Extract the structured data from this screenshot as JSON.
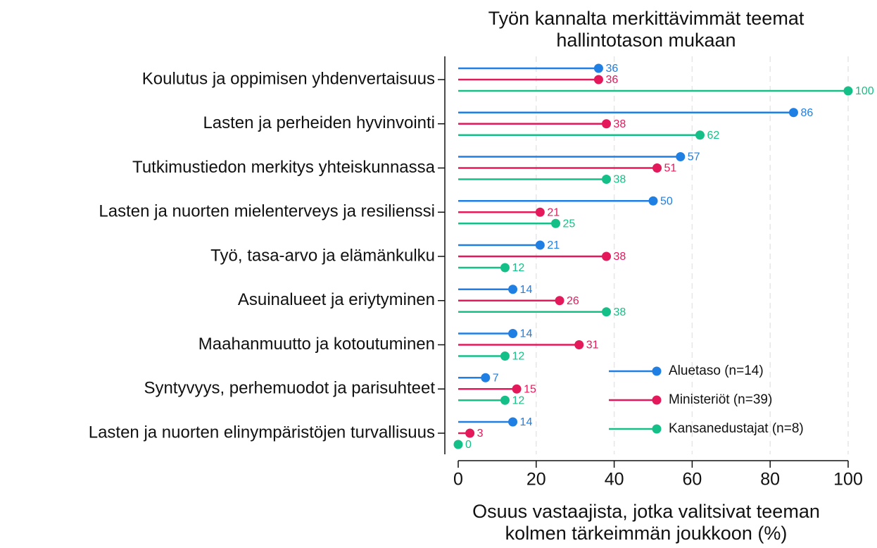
{
  "chart_data": {
    "type": "lollipop",
    "title": [
      "Työn kannalta merkittävimmät teemat",
      "hallintotason mukaan"
    ],
    "x_label": [
      "Osuus vastaajista, jotka valitsivat teeman",
      "kolmen tärkeimmän joukkoon (%)"
    ],
    "categories": [
      "Koulutus ja oppimisen yhdenvertaisuus",
      "Lasten ja perheiden hyvinvointi",
      "Tutkimustiedon merkitys yhteiskunnassa",
      "Lasten ja nuorten mielenterveys ja resilienssi",
      "Työ, tasa-arvo ja elämänkulku",
      "Asuinalueet ja eriytyminen",
      "Maahanmuutto ja kotoutuminen",
      "Syntyvyys, perhemuodot ja parisuhteet",
      "Lasten ja nuorten elinympäristöjen turvallisuus"
    ],
    "series": [
      {
        "name": "Aluetaso (n=14)",
        "color": "#1f7fe3",
        "values": [
          36,
          86,
          57,
          50,
          21,
          14,
          14,
          7,
          14
        ]
      },
      {
        "name": "Ministeriöt (n=39)",
        "color": "#e3195b",
        "values": [
          36,
          38,
          51,
          21,
          38,
          26,
          31,
          15,
          3
        ]
      },
      {
        "name": "Kansanedustajat (n=8)",
        "color": "#14c088",
        "values": [
          100,
          62,
          38,
          25,
          12,
          38,
          12,
          12,
          0
        ]
      }
    ],
    "xlim": [
      0,
      100
    ],
    "xticks": [
      0,
      20,
      40,
      60,
      80,
      100
    ],
    "grid": true,
    "legend": "lower right"
  }
}
